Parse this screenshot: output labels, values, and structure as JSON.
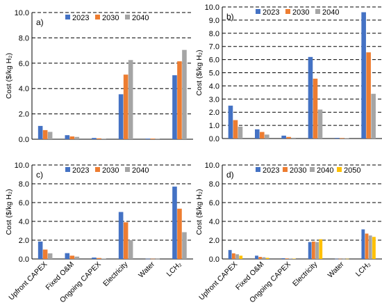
{
  "categories": [
    "Upfront CAPEX",
    "Fixed O&M",
    "Ongoing CAPEX",
    "Electricity",
    "Water",
    "LCH₂"
  ],
  "ylabel": "Cost ($/kg H₂)",
  "colors": {
    "2023": "#4472C4",
    "2030": "#ED7D31",
    "2040": "#A5A5A5",
    "2050": "#FFC000"
  },
  "chart_data": [
    {
      "type": "bar",
      "panel_label": "a)",
      "ylim": [
        0,
        10
      ],
      "ytick_step": 2,
      "ytick_decimals": 1,
      "legend": [
        "2023",
        "2030",
        "2040"
      ],
      "series": [
        {
          "name": "2023",
          "values": [
            1.05,
            0.32,
            0.1,
            3.55,
            0.05,
            5.05
          ]
        },
        {
          "name": "2030",
          "values": [
            0.72,
            0.22,
            0.07,
            5.1,
            0.05,
            6.15
          ]
        },
        {
          "name": "2040",
          "values": [
            0.58,
            0.18,
            0.05,
            6.25,
            0.05,
            7.05
          ]
        }
      ]
    },
    {
      "type": "bar",
      "panel_label": "b)",
      "ylim": [
        0,
        10
      ],
      "ytick_step": 1,
      "ytick_decimals": 1,
      "legend": [
        "2023",
        "2030",
        "2040"
      ],
      "series": [
        {
          "name": "2023",
          "values": [
            2.5,
            0.7,
            0.22,
            6.2,
            0.05,
            9.6
          ]
        },
        {
          "name": "2030",
          "values": [
            1.4,
            0.5,
            0.12,
            4.55,
            0.04,
            6.55
          ]
        },
        {
          "name": "2040",
          "values": [
            0.9,
            0.3,
            0.06,
            2.2,
            0.03,
            3.4
          ]
        }
      ]
    },
    {
      "type": "bar",
      "panel_label": "c)",
      "ylim": [
        0,
        10
      ],
      "ytick_step": 2,
      "ytick_decimals": 1,
      "legend": [
        "2023",
        "2030",
        "2040"
      ],
      "series": [
        {
          "name": "2023",
          "values": [
            1.85,
            0.62,
            0.15,
            5.0,
            0.02,
            7.7
          ]
        },
        {
          "name": "2030",
          "values": [
            1.0,
            0.35,
            0.1,
            3.9,
            0.02,
            5.35
          ]
        },
        {
          "name": "2040",
          "values": [
            0.6,
            0.25,
            0.05,
            2.0,
            0.02,
            2.85
          ]
        }
      ]
    },
    {
      "type": "bar",
      "panel_label": "d)",
      "ylim": [
        0,
        10
      ],
      "ytick_step": 2,
      "ytick_decimals": 1,
      "legend": [
        "2023",
        "2030",
        "2040",
        "2050"
      ],
      "series": [
        {
          "name": "2023",
          "values": [
            0.95,
            0.35,
            0.08,
            1.8,
            0.02,
            3.15
          ]
        },
        {
          "name": "2030",
          "values": [
            0.6,
            0.22,
            0.06,
            1.85,
            0.02,
            2.7
          ]
        },
        {
          "name": "2040",
          "values": [
            0.5,
            0.18,
            0.05,
            1.8,
            0.02,
            2.5
          ]
        },
        {
          "name": "2050",
          "values": [
            0.35,
            0.12,
            0.04,
            2.1,
            0.02,
            2.35
          ]
        }
      ]
    }
  ]
}
